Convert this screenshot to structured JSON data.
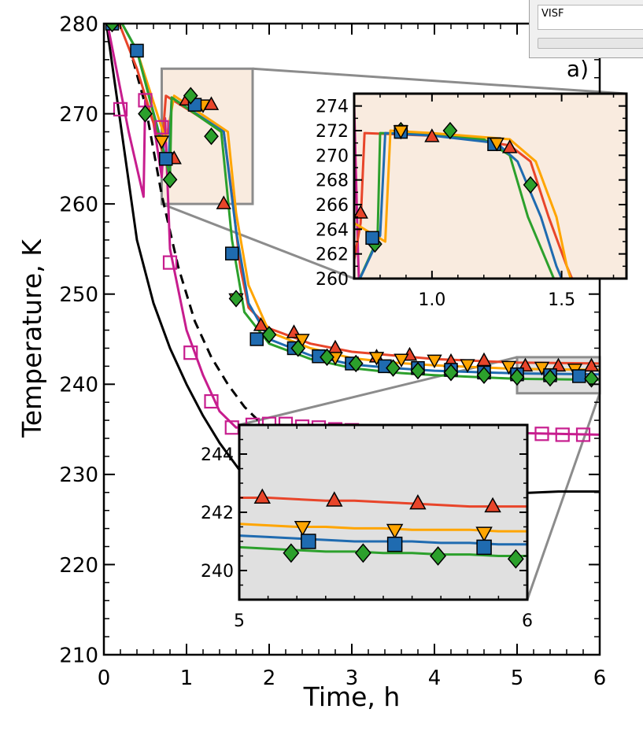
{
  "panel_label": "a)",
  "widget": {
    "field_value": "VISF"
  },
  "colors": {
    "red": "#e8452a",
    "orange": "#ffa500",
    "blue": "#1f6bb0",
    "green": "#2ca02c",
    "magenta": "#c71d8e",
    "black": "#000000",
    "zoom_fill_top": "#f9ebdf",
    "zoom_fill_bottom": "#e0e0e0",
    "zoom_frame": "#8c8c8c"
  },
  "chart_data": [
    {
      "id": "main",
      "type": "line",
      "xlabel": "Time, h",
      "ylabel": "Temperature, K",
      "xlim": [
        0,
        6
      ],
      "ylim": [
        210,
        280
      ],
      "xticks": [
        0,
        1,
        2,
        3,
        4,
        5,
        6
      ],
      "yticks": [
        210,
        220,
        230,
        240,
        250,
        260,
        270,
        280
      ],
      "series": [
        {
          "key": "black_solid",
          "style": "line",
          "color_key": "black",
          "dash": false,
          "x": [
            0,
            0.4,
            0.6,
            0.8,
            1.0,
            1.2,
            1.4,
            1.6,
            1.8,
            2.0,
            2.2,
            2.5,
            3.0,
            3.5,
            4.0,
            4.5,
            5.0,
            5.5,
            6.0
          ],
          "y": [
            282,
            256,
            249,
            244,
            240,
            236.5,
            233.5,
            231,
            228.5,
            226.5,
            225,
            224,
            224.5,
            225.5,
            226.5,
            227.3,
            227.9,
            228.1,
            228.1
          ]
        },
        {
          "key": "black_dashed",
          "style": "line",
          "color_key": "black",
          "dash": true,
          "x": [
            0.35,
            0.5,
            0.7,
            0.9,
            1.1,
            1.3,
            1.5,
            1.7,
            1.9
          ],
          "y": [
            276,
            271,
            261,
            253,
            247,
            243,
            240,
            237.5,
            235.7
          ]
        },
        {
          "key": "magenta",
          "style": "line+marker",
          "color_key": "magenta",
          "marker": "square-open",
          "x": [
            0,
            0.15,
            0.3,
            0.4,
            0.48,
            0.5,
            0.6,
            0.7,
            0.74,
            0.8,
            1.0,
            1.2,
            1.4,
            1.6,
            1.8,
            2.0,
            3.0,
            4.0,
            5.0,
            6.0
          ],
          "y": [
            282,
            275,
            268,
            264,
            260.8,
            271.5,
            269,
            263,
            269.5,
            255,
            246,
            241,
            237,
            235.2,
            235.2,
            235.1,
            234.9,
            234.7,
            234.6,
            234.4
          ],
          "marker_x": [
            0.2,
            0.5,
            0.7,
            0.8,
            1.05,
            1.3,
            1.55,
            1.8,
            2.0,
            2.2,
            2.4,
            2.6,
            2.8,
            3.0,
            3.2,
            3.4,
            3.6,
            3.8,
            4.0,
            4.2,
            4.4,
            4.6,
            4.8,
            5.0,
            5.3,
            5.55,
            5.8
          ],
          "marker_y": [
            270.5,
            271.5,
            268.5,
            253.5,
            243.5,
            238.1,
            235.2,
            235.5,
            235.6,
            235.6,
            235.3,
            235.2,
            235.0,
            234.9,
            234.8,
            234.8,
            234.7,
            234.7,
            234.7,
            234.6,
            234.6,
            234.6,
            234.5,
            234.5,
            234.5,
            234.4,
            234.4
          ]
        },
        {
          "key": "red",
          "style": "line+marker",
          "color_key": "red",
          "marker": "triangle-up",
          "x": [
            0.1,
            0.4,
            0.7,
            0.75,
            1.45,
            1.55,
            1.65,
            1.75,
            2.0,
            2.5,
            3.0,
            3.5,
            4.0,
            5.0,
            6.0
          ],
          "y": [
            282,
            275,
            266,
            272,
            268,
            261,
            253,
            248.5,
            246.2,
            244.5,
            243.6,
            243.2,
            242.8,
            242.4,
            242.3
          ],
          "marker_x": [
            0.85,
            1.0,
            1.3,
            1.45,
            1.9,
            2.3,
            2.8,
            3.3,
            3.7,
            4.2,
            4.6,
            5.1,
            5.5,
            5.9
          ],
          "marker_y": [
            265.0,
            271.5,
            271.0,
            260.0,
            246.5,
            245.7,
            244.0,
            243.0,
            243.2,
            242.5,
            242.6,
            242.0,
            242.0,
            242.0
          ]
        },
        {
          "key": "orange",
          "style": "line+marker",
          "color_key": "orange",
          "marker": "triangle-down",
          "x": [
            0.1,
            0.4,
            0.75,
            0.85,
            1.5,
            1.6,
            1.75,
            2.0,
            2.5,
            3.0,
            3.5,
            4.0,
            5.0,
            6.0
          ],
          "y": [
            282,
            277,
            267,
            272,
            268,
            259,
            251,
            245.8,
            244,
            242.9,
            242.4,
            242.1,
            241.7,
            241.6
          ],
          "marker_x": [
            0.7,
            1.2,
            1.6,
            2.4,
            2.8,
            3.3,
            3.6,
            4.0,
            4.4,
            4.9,
            5.3,
            5.7
          ],
          "marker_y": [
            267.0,
            271.0,
            249.5,
            245.0,
            243.0,
            243.0,
            242.8,
            242.7,
            242.2,
            242.0,
            241.9,
            241.7
          ]
        },
        {
          "key": "blue",
          "style": "line+marker",
          "color_key": "blue",
          "marker": "square",
          "x": [
            0.1,
            0.4,
            0.78,
            0.82,
            1.45,
            1.6,
            1.75,
            2.0,
            2.5,
            3.0,
            3.5,
            4.0,
            5.0,
            6.0
          ],
          "y": [
            282,
            277,
            264,
            271.8,
            268,
            257,
            249,
            245,
            243.2,
            242.2,
            241.8,
            241.5,
            241.2,
            241.1
          ],
          "marker_x": [
            0.1,
            0.4,
            0.75,
            1.1,
            1.55,
            1.85,
            2.3,
            2.6,
            3.0,
            3.4,
            3.8,
            4.2,
            4.6,
            5.0,
            5.4,
            5.75
          ],
          "marker_y": [
            280.0,
            277.0,
            265.0,
            271.0,
            254.5,
            245.0,
            244.0,
            243.1,
            242.3,
            242.0,
            241.8,
            241.6,
            241.3,
            241.1,
            241.0,
            240.9
          ]
        },
        {
          "key": "green",
          "style": "line+marker",
          "color_key": "green",
          "marker": "diamond",
          "x": [
            0.1,
            0.4,
            0.8,
            0.82,
            1.42,
            1.55,
            1.7,
            2.0,
            2.5,
            3.0,
            3.5,
            4.0,
            5.0,
            6.0
          ],
          "y": [
            282,
            277,
            263,
            271.8,
            268,
            256,
            248,
            244.5,
            242.8,
            241.8,
            241.3,
            241.0,
            240.6,
            240.5
          ],
          "marker_x": [
            0.1,
            0.5,
            0.8,
            1.05,
            1.3,
            1.6,
            2.0,
            2.35,
            2.7,
            3.05,
            3.5,
            3.8,
            4.2,
            4.6,
            5.0,
            5.4,
            5.9
          ],
          "marker_y": [
            280.0,
            270.0,
            262.7,
            272.0,
            267.5,
            249.5,
            245.5,
            244.0,
            243.0,
            242.3,
            241.8,
            241.5,
            241.3,
            241.0,
            240.8,
            240.7,
            240.6
          ]
        }
      ]
    },
    {
      "id": "inset_top",
      "type": "line",
      "xlim": [
        0.7,
        1.75
      ],
      "ylim": [
        260,
        275
      ],
      "xticks": [
        1.0,
        1.5
      ],
      "xtick_labels": [
        "1.0",
        "1.5"
      ],
      "yticks": [
        260,
        262,
        264,
        266,
        268,
        270,
        272,
        274
      ],
      "zoom_region": {
        "x": [
          0.7,
          1.8
        ],
        "y": [
          260,
          275
        ]
      },
      "series": [
        {
          "key": "magenta",
          "color_key": "magenta",
          "x": [
            0.7,
            0.715,
            0.72
          ],
          "y": [
            274,
            262,
            259
          ]
        },
        {
          "key": "red",
          "color_key": "red",
          "marker": "triangle-up",
          "x": [
            0.7,
            0.725,
            0.74,
            1.1,
            1.3,
            1.38,
            1.45,
            1.52,
            1.56
          ],
          "y": [
            261.5,
            264.5,
            271.8,
            271.5,
            270.8,
            269.5,
            265,
            261,
            259
          ],
          "marker_x": [
            0.725,
            1.0,
            1.3
          ],
          "marker_y": [
            265.3,
            271.5,
            270.6
          ]
        },
        {
          "key": "green",
          "color_key": "green",
          "marker": "diamond",
          "x": [
            0.7,
            0.79,
            0.8,
            1.0,
            1.2,
            1.3,
            1.37,
            1.45,
            1.49
          ],
          "y": [
            259,
            263.2,
            271.8,
            271.7,
            271.3,
            270,
            265,
            261,
            259
          ],
          "marker_x": [
            0.78,
            0.88,
            1.07,
            1.38
          ],
          "marker_y": [
            262.8,
            272.0,
            272.0,
            267.6
          ]
        },
        {
          "key": "blue",
          "color_key": "blue",
          "marker": "square",
          "x": [
            0.7,
            0.8,
            0.82,
            1.0,
            1.25,
            1.33,
            1.42,
            1.48,
            1.52
          ],
          "y": [
            259,
            263.5,
            271.8,
            271.6,
            271,
            269.5,
            265,
            261,
            259
          ],
          "marker_x": [
            0.77,
            0.88,
            1.24
          ],
          "marker_y": [
            263.3,
            271.9,
            270.9
          ]
        },
        {
          "key": "orange",
          "color_key": "orange",
          "marker": "triangle-down",
          "x": [
            0.7,
            0.7,
            0.82,
            0.84,
            1.0,
            1.3,
            1.4,
            1.48,
            1.52,
            1.55
          ],
          "y": [
            266,
            264.5,
            263.0,
            272.0,
            271.8,
            271.3,
            269.5,
            265,
            261,
            259
          ],
          "marker_x": [
            0.88,
            1.25
          ],
          "marker_y": [
            272.0,
            271.0
          ]
        }
      ]
    },
    {
      "id": "inset_bottom",
      "type": "line",
      "xlim": [
        5.0,
        6.0
      ],
      "ylim": [
        239,
        245
      ],
      "xticks": [
        5,
        6
      ],
      "xtick_labels": [
        "5",
        "6"
      ],
      "yticks": [
        240,
        242,
        244
      ],
      "zoom_region": {
        "x": [
          5.0,
          6.0
        ],
        "y": [
          239,
          243
        ]
      },
      "series": [
        {
          "key": "red",
          "color_key": "red",
          "marker": "triangle-up",
          "x": [
            5.0,
            5.1,
            5.2,
            5.3,
            5.4,
            5.5,
            5.6,
            5.7,
            5.8,
            5.9,
            6.0
          ],
          "y": [
            242.5,
            242.5,
            242.45,
            242.4,
            242.4,
            242.35,
            242.3,
            242.25,
            242.2,
            242.2,
            242.2
          ],
          "marker_x": [
            5.08,
            5.33,
            5.62,
            5.88
          ],
          "marker_y": [
            242.5,
            242.4,
            242.3,
            242.2
          ]
        },
        {
          "key": "orange",
          "color_key": "orange",
          "marker": "triangle-down",
          "x": [
            5.0,
            5.1,
            5.2,
            5.3,
            5.4,
            5.5,
            5.6,
            5.7,
            5.8,
            5.9,
            6.0
          ],
          "y": [
            241.6,
            241.55,
            241.5,
            241.5,
            241.45,
            241.45,
            241.4,
            241.4,
            241.4,
            241.35,
            241.35
          ],
          "marker_x": [
            5.22,
            5.54,
            5.85
          ],
          "marker_y": [
            241.5,
            241.4,
            241.3
          ]
        },
        {
          "key": "blue",
          "color_key": "blue",
          "marker": "square",
          "x": [
            5.0,
            5.1,
            5.2,
            5.3,
            5.4,
            5.5,
            5.6,
            5.7,
            5.8,
            5.9,
            6.0
          ],
          "y": [
            241.2,
            241.15,
            241.1,
            241.05,
            241.0,
            241.0,
            241.0,
            240.95,
            240.95,
            240.9,
            240.9
          ],
          "marker_x": [
            5.24,
            5.54,
            5.85
          ],
          "marker_y": [
            241.0,
            240.9,
            240.8
          ]
        },
        {
          "key": "green",
          "color_key": "green",
          "marker": "diamond",
          "x": [
            5.0,
            5.1,
            5.2,
            5.3,
            5.4,
            5.5,
            5.6,
            5.7,
            5.8,
            5.9,
            6.0
          ],
          "y": [
            240.8,
            240.75,
            240.7,
            240.65,
            240.65,
            240.6,
            240.6,
            240.55,
            240.55,
            240.5,
            240.5
          ],
          "marker_x": [
            5.18,
            5.43,
            5.69,
            5.96
          ],
          "marker_y": [
            240.6,
            240.6,
            240.5,
            240.4
          ]
        }
      ]
    }
  ]
}
